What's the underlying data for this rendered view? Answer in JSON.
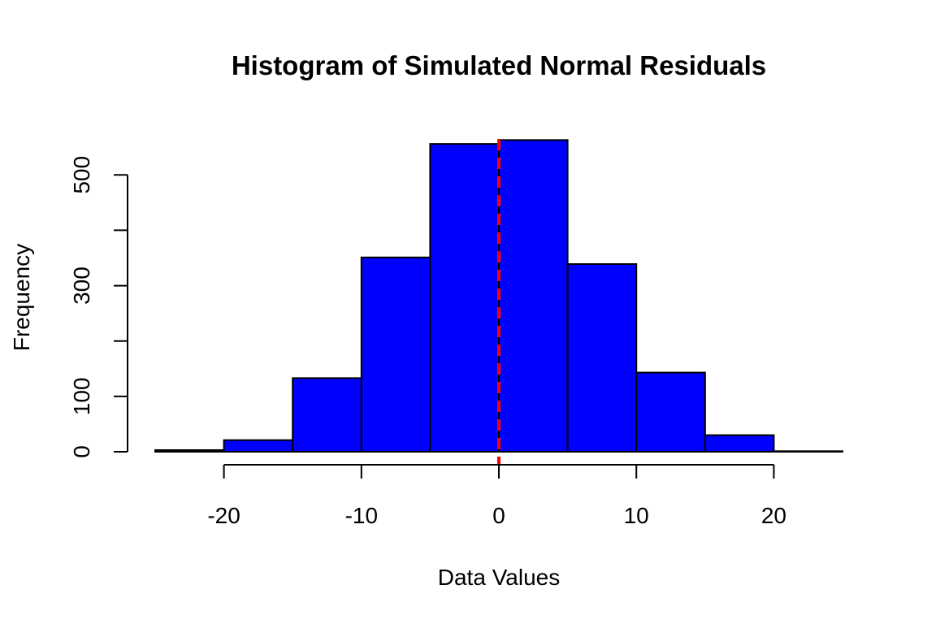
{
  "chart_data": {
    "type": "bar",
    "title": "Histogram of Simulated Normal Residuals",
    "xlabel": "Data Values",
    "ylabel": "Frequency",
    "bins": [
      {
        "start": -25,
        "end": -20,
        "value": 3
      },
      {
        "start": -20,
        "end": -15,
        "value": 21
      },
      {
        "start": -15,
        "end": -10,
        "value": 133
      },
      {
        "start": -10,
        "end": -5,
        "value": 351
      },
      {
        "start": -5,
        "end": 0,
        "value": 556
      },
      {
        "start": 0,
        "end": 5,
        "value": 563
      },
      {
        "start": 5,
        "end": 10,
        "value": 339
      },
      {
        "start": 10,
        "end": 15,
        "value": 143
      },
      {
        "start": 15,
        "end": 20,
        "value": 30
      },
      {
        "start": 20,
        "end": 25,
        "value": 1
      }
    ],
    "xlim": [
      -25,
      25
    ],
    "ylim": [
      0,
      565
    ],
    "x_ticks": [
      -20,
      -10,
      0,
      10,
      20
    ],
    "x_tick_labels": [
      "-20",
      "-10",
      "0",
      "10",
      "20"
    ],
    "y_ticks": [
      0,
      100,
      200,
      300,
      400,
      500
    ],
    "y_tick_labels": [
      "0",
      "100",
      "",
      "300",
      "",
      "500"
    ],
    "bar_color": "#0000FF",
    "bar_border_color": "#000000",
    "reference_line": {
      "x": 0,
      "color": "#FF0000",
      "style": "dashed"
    },
    "grid": false
  }
}
